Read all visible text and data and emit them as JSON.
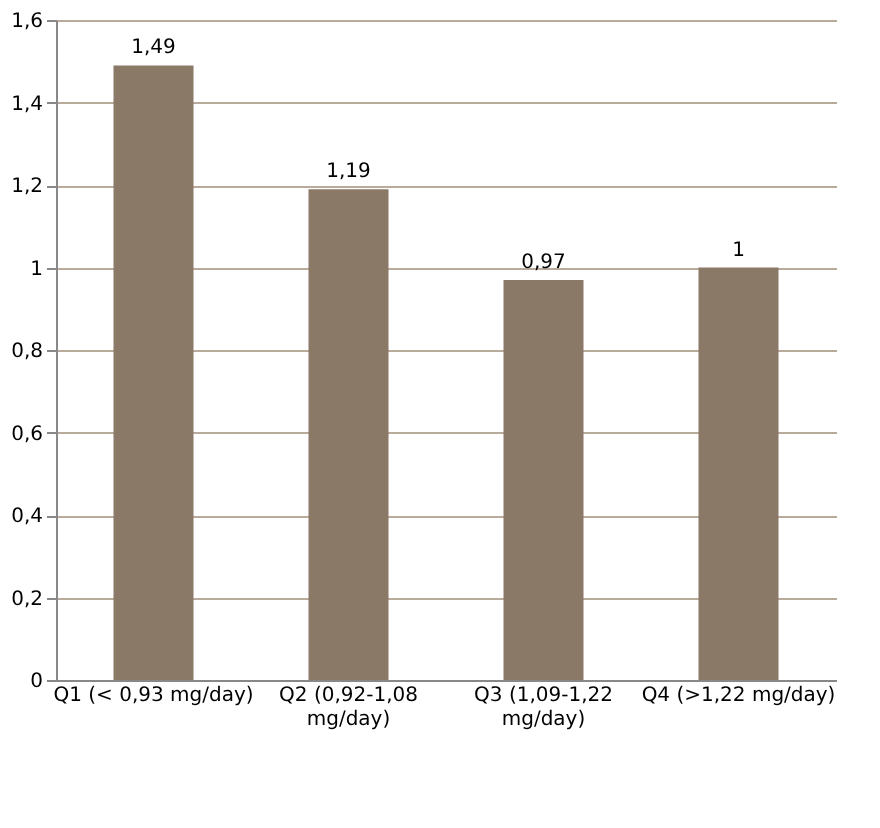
{
  "chart_data": {
    "type": "bar",
    "categories": [
      "Q1 (< 0,93 mg/day)",
      "Q2 (0,92-1,08 mg/day)",
      "Q3 (1,09-1,22 mg/day)",
      "Q4 (>1,22 mg/day)"
    ],
    "values": [
      1.49,
      1.19,
      0.97,
      1
    ],
    "value_labels": [
      "1,49",
      "1,19",
      "0,97",
      "1"
    ],
    "color": "#8b7968",
    "ylim": [
      0,
      1.6
    ],
    "yticks": [
      0,
      {
        "value": 0.2,
        "label": "0,2"
      },
      {
        "value": 0.4,
        "label": "0,4"
      },
      {
        "value": 0.6,
        "label": "0,6"
      },
      {
        "value": 0.8,
        "label": "0,8"
      },
      1,
      {
        "value": 1.2,
        "label": "1,2"
      },
      {
        "value": 1.4,
        "label": "1,4"
      },
      {
        "value": 1.6,
        "label": "1,6"
      }
    ],
    "grid": "y"
  }
}
